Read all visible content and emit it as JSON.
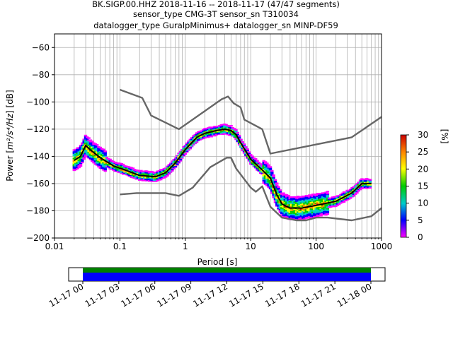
{
  "chart_data": {
    "type": "line",
    "title_lines": [
      "BK.SIGP.00.HHZ   2018-11-16 -- 2018-11-17  (47/47 segments)",
      "sensor_type CMG-3T sensor_sn T310034",
      "datalogger_type GuralpMinimus+ datalogger_sn MINP-DF59"
    ],
    "xlabel": "Period [s]",
    "ylabel_prefix": "Power [",
    "ylabel_math": "m²/s⁴/Hz",
    "ylabel_suffix": "] [dB]",
    "x_scale": "log",
    "xlim": [
      0.01,
      1000
    ],
    "ylim": [
      -200,
      -50
    ],
    "x_ticks": [
      0.01,
      0.1,
      1,
      10,
      100,
      1000
    ],
    "x_tick_labels": [
      "0.01",
      "0.1",
      "1",
      "10",
      "100",
      "1000"
    ],
    "y_ticks": [
      -60,
      -80,
      -100,
      -120,
      -140,
      -160,
      -180,
      -200
    ],
    "y_tick_labels": [
      "−60",
      "−80",
      "−100",
      "−120",
      "−140",
      "−160",
      "−180",
      "−200"
    ],
    "grid": true,
    "colorbar": {
      "label": "[%]",
      "range": [
        0,
        30
      ],
      "ticks": [
        0,
        5,
        10,
        15,
        20,
        25,
        30
      ],
      "tick_labels": [
        "0",
        "5",
        "10",
        "15",
        "20",
        "25",
        "30"
      ],
      "colormap": [
        "#ff00ff",
        "#0000ff",
        "#00cccc",
        "#00cc00",
        "#ffff00",
        "#ff8800",
        "#cc0000"
      ]
    },
    "series": [
      {
        "role": "noise-model-high",
        "color": "#666666",
        "x": [
          0.1,
          0.22,
          0.3,
          0.8,
          3.6,
          4.5,
          5.5,
          7,
          8,
          15,
          20,
          350,
          1000
        ],
        "y": [
          -91,
          -97,
          -110,
          -120,
          -98,
          -96,
          -101,
          -104,
          -113,
          -120,
          -138,
          -126,
          -111
        ]
      },
      {
        "role": "noise-model-low",
        "color": "#666666",
        "x": [
          0.1,
          0.18,
          0.5,
          0.8,
          1.3,
          2.4,
          4.3,
          5,
          6,
          10,
          12,
          15,
          20,
          30,
          50,
          70,
          100,
          150,
          350,
          700,
          1000
        ],
        "y": [
          -168,
          -167,
          -167,
          -169,
          -163,
          -148,
          -141,
          -141,
          -149,
          -163,
          -166,
          -162,
          -177,
          -185,
          -187,
          -187,
          -185,
          -185,
          -187,
          -184,
          -178
        ]
      },
      {
        "role": "mode",
        "color": "#000000",
        "x": [
          0.02,
          0.025,
          0.03,
          0.035,
          0.05,
          0.08,
          0.12,
          0.2,
          0.35,
          0.5,
          0.7,
          1,
          1.5,
          2,
          3,
          4,
          5,
          6,
          7,
          10,
          15,
          20,
          25,
          30,
          40,
          60,
          100,
          200,
          350,
          500,
          700
        ],
        "y": [
          -143,
          -140,
          -132,
          -135,
          -141,
          -147,
          -150,
          -154,
          -155,
          -152,
          -145,
          -135,
          -126,
          -123,
          -121,
          -120,
          -121,
          -124,
          -130,
          -142,
          -150,
          -156,
          -168,
          -175,
          -178,
          -178,
          -176,
          -173,
          -167,
          -160,
          -160
        ]
      }
    ],
    "time_axis": {
      "tick_labels": [
        "11-17 00",
        "11-17 03",
        "11-17 06",
        "11-17 09",
        "11-17 12",
        "11-17 15",
        "11-17 18",
        "11-17 21",
        "11-18 00"
      ],
      "coverage_colors": [
        "#008000",
        "#0000ff"
      ],
      "coverage": "full"
    }
  }
}
